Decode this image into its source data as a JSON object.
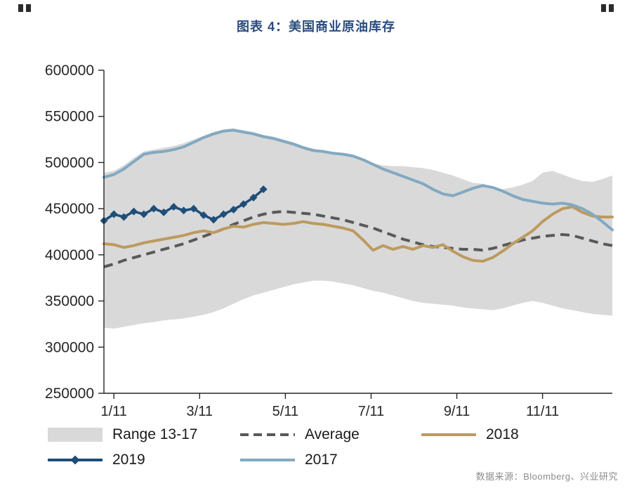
{
  "page": {
    "source_note": "数据来源：Bloomberg、兴业研究"
  },
  "colors": {
    "title": "#2a4b7c",
    "range_fill": "#d9d9d9",
    "average": "#595959",
    "y2018": "#bd9a5f",
    "y2019": "#1f4e79",
    "y2017": "#82a9c1",
    "axis": "#262626",
    "source": "#8c8c8c"
  },
  "chart_data": {
    "type": "line",
    "title": "图表 4：美国商业原油库存",
    "xlabel": "",
    "ylabel": "",
    "ylim": [
      250000,
      600000
    ],
    "y_ticks": [
      250000,
      300000,
      350000,
      400000,
      450000,
      500000,
      550000,
      600000
    ],
    "x_tick_labels": [
      "1/11",
      "3/11",
      "5/11",
      "7/11",
      "9/11",
      "11/11"
    ],
    "x_tick_indices": [
      1,
      9.6,
      18.2,
      26.8,
      35.4,
      44
    ],
    "n_points": 52,
    "grid": false,
    "legend_position": "bottom",
    "series": [
      {
        "name": "Range 13-17",
        "type": "band",
        "color_key": "range_fill",
        "upper": [
          489000,
          491000,
          497000,
          505000,
          512000,
          514000,
          516000,
          518000,
          521000,
          525000,
          529000,
          533000,
          536000,
          537000,
          535000,
          533000,
          530000,
          528000,
          525000,
          522000,
          518000,
          515000,
          513000,
          511000,
          510000,
          508000,
          504000,
          499000,
          497000,
          496000,
          496000,
          495000,
          494000,
          492000,
          489000,
          486000,
          482000,
          478000,
          477000,
          474000,
          471000,
          473000,
          476000,
          480000,
          489000,
          491000,
          487000,
          483000,
          480000,
          479000,
          482000,
          486000
        ],
        "lower": [
          321000,
          320000,
          322000,
          324000,
          326000,
          327000,
          329000,
          330000,
          331000,
          333000,
          335000,
          338000,
          342000,
          347000,
          352000,
          356000,
          359000,
          362000,
          365000,
          368000,
          370000,
          372000,
          372000,
          371000,
          369000,
          367000,
          364000,
          361000,
          359000,
          356000,
          353000,
          350000,
          348000,
          347000,
          346000,
          345000,
          343000,
          342000,
          341000,
          340000,
          342000,
          345000,
          348000,
          350000,
          348000,
          345000,
          342000,
          340000,
          338000,
          336000,
          335000,
          334000
        ]
      },
      {
        "name": "Average",
        "type": "line",
        "style": "dashed",
        "color_key": "average",
        "values": [
          387000,
          390000,
          394000,
          397000,
          400000,
          403000,
          406000,
          409000,
          412000,
          416000,
          420000,
          424000,
          428000,
          433000,
          437000,
          441000,
          444000,
          446000,
          447000,
          446000,
          445000,
          444000,
          442000,
          440000,
          438000,
          435000,
          432000,
          429000,
          425000,
          421000,
          417000,
          414000,
          411000,
          409000,
          408000,
          407000,
          406000,
          406000,
          405000,
          407000,
          410000,
          413000,
          416000,
          418000,
          420000,
          421000,
          422000,
          421000,
          418000,
          415000,
          412000,
          410000
        ]
      },
      {
        "name": "2018",
        "type": "line",
        "style": "solid",
        "color_key": "y2018",
        "values": [
          412000,
          411000,
          408000,
          410000,
          413000,
          415000,
          417000,
          419000,
          421000,
          424000,
          426000,
          424000,
          428000,
          431000,
          430000,
          433000,
          435000,
          434000,
          433000,
          434000,
          436000,
          434000,
          433000,
          431000,
          429000,
          426000,
          416000,
          405000,
          410000,
          406000,
          409000,
          406000,
          410000,
          408000,
          411000,
          404000,
          398000,
          394000,
          393000,
          397000,
          404000,
          412000,
          419000,
          426000,
          436000,
          444000,
          450000,
          452000,
          446000,
          442000,
          441000,
          441000
        ]
      },
      {
        "name": "2019",
        "type": "line",
        "style": "solid",
        "marker": "diamond",
        "color_key": "y2019",
        "start_index": 0,
        "values": [
          437000,
          444000,
          441000,
          447000,
          444000,
          450000,
          446000,
          452000,
          448000,
          450000,
          443000,
          438000,
          444000,
          449000,
          455000,
          462000,
          471000
        ]
      },
      {
        "name": "2017",
        "type": "line",
        "style": "solid",
        "color_key": "y2017",
        "values": [
          484000,
          487000,
          493000,
          501000,
          509000,
          511000,
          512000,
          514000,
          517000,
          522000,
          527000,
          531000,
          534000,
          535000,
          533000,
          531000,
          528000,
          526000,
          523000,
          520000,
          516000,
          513000,
          512000,
          510000,
          509000,
          507000,
          503000,
          498000,
          493000,
          489000,
          485000,
          481000,
          477000,
          471000,
          466000,
          464000,
          468000,
          472000,
          475000,
          473000,
          469000,
          464000,
          460000,
          458000,
          456000,
          455000,
          456000,
          454000,
          450000,
          444000,
          436000,
          427000
        ]
      }
    ]
  }
}
